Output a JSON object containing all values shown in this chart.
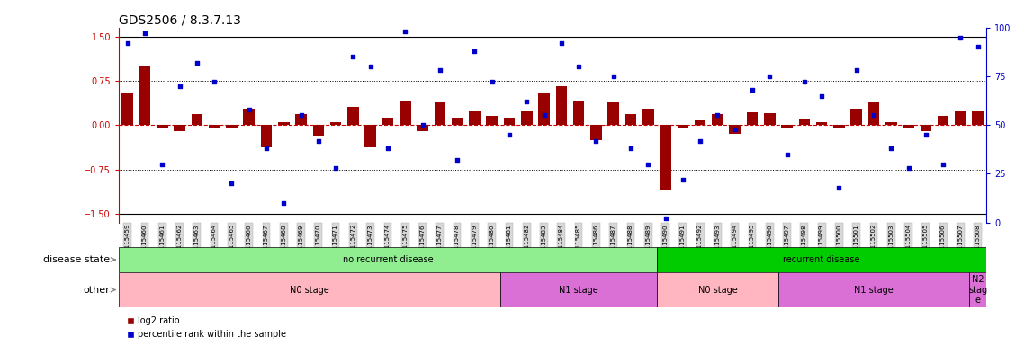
{
  "title": "GDS2506 / 8.3.7.13",
  "samples": [
    "GSM115459",
    "GSM115460",
    "GSM115461",
    "GSM115462",
    "GSM115463",
    "GSM115464",
    "GSM115465",
    "GSM115466",
    "GSM115467",
    "GSM115468",
    "GSM115469",
    "GSM115470",
    "GSM115471",
    "GSM115472",
    "GSM115473",
    "GSM115474",
    "GSM115475",
    "GSM115476",
    "GSM115477",
    "GSM115478",
    "GSM115479",
    "GSM115480",
    "GSM115481",
    "GSM115482",
    "GSM115483",
    "GSM115484",
    "GSM115485",
    "GSM115486",
    "GSM115487",
    "GSM115488",
    "GSM115489",
    "GSM115490",
    "GSM115491",
    "GSM115492",
    "GSM115493",
    "GSM115494",
    "GSM115495",
    "GSM115496",
    "GSM115497",
    "GSM115498",
    "GSM115499",
    "GSM115500",
    "GSM115501",
    "GSM115502",
    "GSM115503",
    "GSM115504",
    "GSM115505",
    "GSM115506",
    "GSM115507",
    "GSM115508"
  ],
  "log2_ratio": [
    0.55,
    1.0,
    -0.05,
    -0.1,
    0.18,
    -0.05,
    -0.05,
    0.28,
    -0.38,
    0.05,
    0.18,
    -0.18,
    0.05,
    0.3,
    -0.38,
    0.12,
    0.42,
    -0.1,
    0.38,
    0.12,
    0.25,
    0.15,
    0.12,
    0.25,
    0.55,
    0.65,
    0.42,
    -0.25,
    0.38,
    0.18,
    0.28,
    -1.1,
    -0.05,
    0.08,
    0.18,
    -0.15,
    0.22,
    0.2,
    -0.05,
    0.1,
    0.05,
    -0.05,
    0.28,
    0.38,
    0.05,
    -0.05,
    -0.1,
    0.15,
    0.25,
    0.25
  ],
  "percentile_rank": [
    92,
    97,
    30,
    70,
    82,
    72,
    20,
    58,
    38,
    10,
    55,
    42,
    28,
    85,
    80,
    38,
    98,
    50,
    78,
    32,
    88,
    72,
    45,
    62,
    55,
    92,
    80,
    42,
    75,
    38,
    30,
    2,
    22,
    42,
    55,
    48,
    68,
    75,
    35,
    72,
    65,
    18,
    78,
    55,
    38,
    28,
    45,
    30,
    95,
    90
  ],
  "ylim": [
    -1.65,
    1.65
  ],
  "y2lim": [
    0,
    100
  ],
  "yticks": [
    -1.5,
    -0.75,
    0,
    0.75,
    1.5
  ],
  "y2ticks": [
    0,
    25,
    50,
    75,
    100
  ],
  "bar_color": "#990000",
  "dot_color": "#0000cc",
  "zero_line_color": "#cc0000",
  "disease_state_groups": [
    {
      "label": "no recurrent disease",
      "start": 0,
      "end": 31,
      "color": "#90ee90"
    },
    {
      "label": "recurrent disease",
      "start": 31,
      "end": 50,
      "color": "#00cc00"
    }
  ],
  "other_groups": [
    {
      "label": "N0 stage",
      "start": 0,
      "end": 22,
      "color": "#ffb6c1"
    },
    {
      "label": "N1 stage",
      "start": 22,
      "end": 31,
      "color": "#da70d6"
    },
    {
      "label": "N0 stage",
      "start": 31,
      "end": 38,
      "color": "#ffb6c1"
    },
    {
      "label": "N1 stage",
      "start": 38,
      "end": 49,
      "color": "#da70d6"
    },
    {
      "label": "N2\nstag\ne",
      "start": 49,
      "end": 50,
      "color": "#da70d6"
    }
  ],
  "disease_state_label": "disease state",
  "other_label": "other",
  "legend_bar_label": "log2 ratio",
  "legend_dot_label": "percentile rank within the sample",
  "title_fontsize": 10,
  "axis_fontsize": 7,
  "tick_fontsize": 7,
  "label_fontsize": 8,
  "xlabel_fontsize": 5
}
